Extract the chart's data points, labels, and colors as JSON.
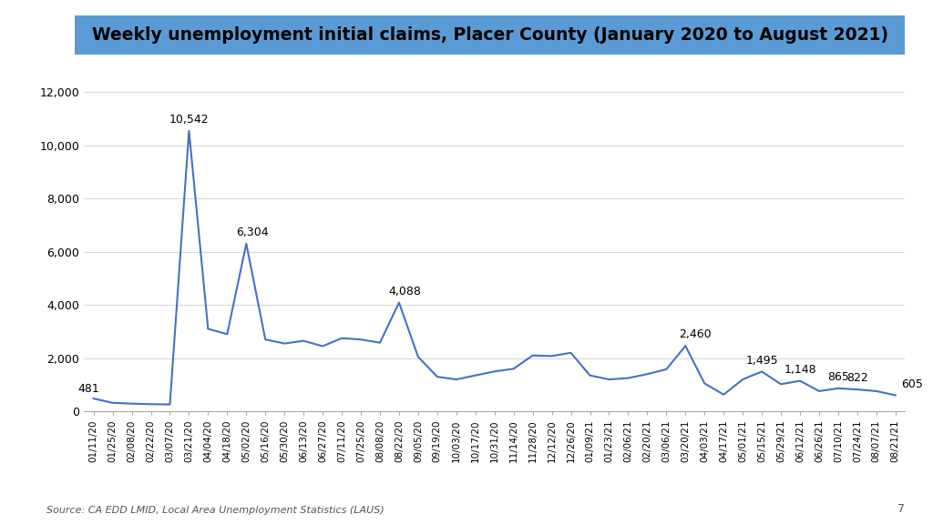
{
  "title": "Weekly unemployment initial claims, Placer County (January 2020 to August 2021)",
  "title_bg_color": "#5B9BD5",
  "title_text_color": "#000000",
  "line_color": "#4472C4",
  "source_text": "Source: CA EDD LMID, Local Area Unemployment Statistics (LAUS)",
  "page_number": "7",
  "background_color": "#FFFFFF",
  "ylim": [
    0,
    13000
  ],
  "yticks": [
    0,
    2000,
    4000,
    6000,
    8000,
    10000,
    12000
  ],
  "dates": [
    "01/11/20",
    "01/25/20",
    "02/08/20",
    "02/22/20",
    "03/07/20",
    "03/21/20",
    "04/04/20",
    "04/18/20",
    "05/02/20",
    "05/16/20",
    "05/30/20",
    "06/13/20",
    "06/27/20",
    "07/11/20",
    "07/25/20",
    "08/08/20",
    "08/22/20",
    "09/05/20",
    "09/19/20",
    "10/03/20",
    "10/17/20",
    "10/31/20",
    "11/14/20",
    "11/28/20",
    "12/12/20",
    "12/26/20",
    "01/09/21",
    "01/23/21",
    "02/06/21",
    "02/20/21",
    "03/06/21",
    "03/20/21",
    "04/03/21",
    "04/17/21",
    "05/01/21",
    "05/15/21",
    "05/29/21",
    "06/12/21",
    "06/26/21",
    "07/10/21",
    "07/24/21",
    "08/07/21",
    "08/21/21"
  ],
  "values": [
    481,
    320,
    290,
    270,
    260,
    10542,
    3100,
    2900,
    6304,
    2700,
    2550,
    2650,
    2450,
    2750,
    2700,
    2580,
    4088,
    2050,
    1300,
    1200,
    1350,
    1500,
    1600,
    2100,
    2080,
    2200,
    1350,
    1200,
    1250,
    1400,
    1580,
    2460,
    1050,
    630,
    1200,
    1495,
    1020,
    1148,
    760,
    865,
    822,
    760,
    605
  ],
  "annotations": [
    {
      "idx": 0,
      "value": 481,
      "label": "481",
      "ha": "right",
      "xoff": 0.3,
      "yoff": 150
    },
    {
      "idx": 5,
      "value": 10542,
      "label": "10,542",
      "ha": "center",
      "xoff": 0,
      "yoff": 200
    },
    {
      "idx": 8,
      "value": 6304,
      "label": "6,304",
      "ha": "center",
      "xoff": 0.3,
      "yoff": 200
    },
    {
      "idx": 16,
      "value": 4088,
      "label": "4,088",
      "ha": "center",
      "xoff": 0.3,
      "yoff": 200
    },
    {
      "idx": 31,
      "value": 2460,
      "label": "2,460",
      "ha": "center",
      "xoff": 0.5,
      "yoff": 200
    },
    {
      "idx": 35,
      "value": 1495,
      "label": "1,495",
      "ha": "center",
      "xoff": 0,
      "yoff": 200
    },
    {
      "idx": 37,
      "value": 1148,
      "label": "1,148",
      "ha": "center",
      "xoff": 0,
      "yoff": 200
    },
    {
      "idx": 39,
      "value": 865,
      "label": "865",
      "ha": "center",
      "xoff": 0,
      "yoff": 200
    },
    {
      "idx": 40,
      "value": 822,
      "label": "822",
      "ha": "center",
      "xoff": 0,
      "yoff": 200
    },
    {
      "idx": 42,
      "value": 605,
      "label": "605",
      "ha": "left",
      "xoff": 0.3,
      "yoff": 200
    }
  ]
}
